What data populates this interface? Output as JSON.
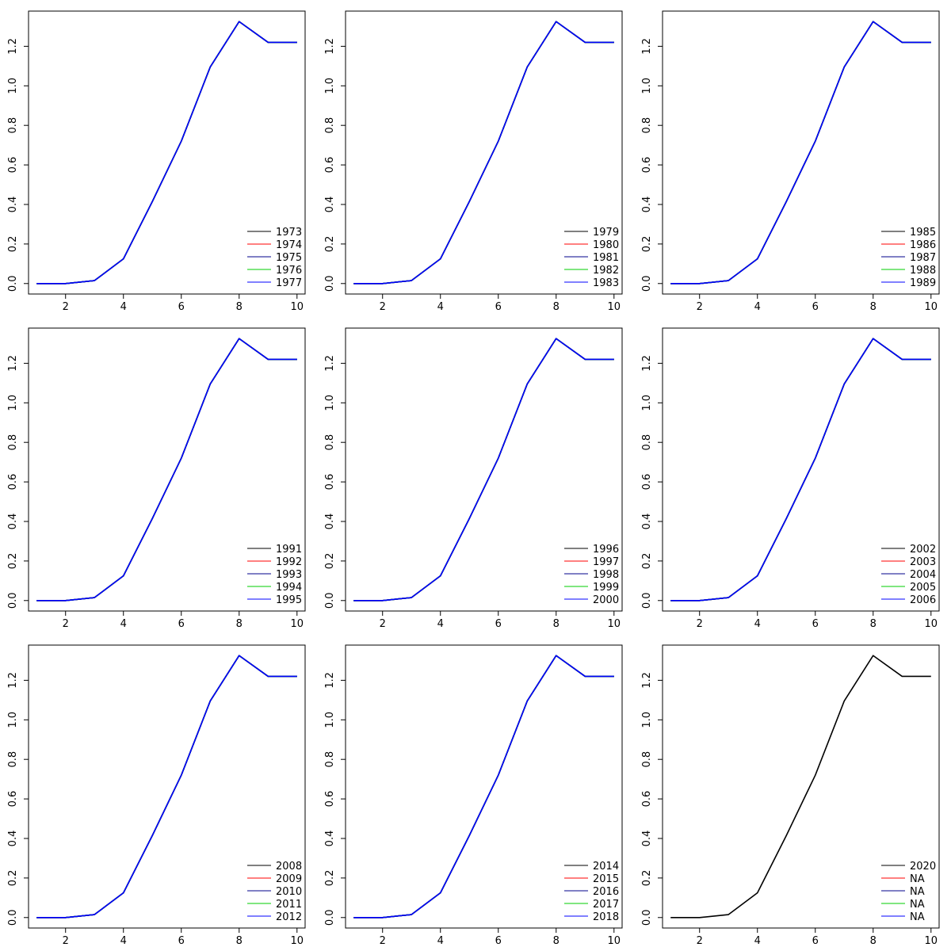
{
  "chart_data": {
    "layout": "3x3 grid of line charts",
    "panels": [
      {
        "type": "line",
        "x": [
          1,
          2,
          3,
          4,
          5,
          6,
          7,
          8,
          9,
          10
        ],
        "series": [
          {
            "name": "1973",
            "color": "#000000",
            "values": [
              0,
              0,
              0.015,
              0.125,
              0.415,
              0.72,
              1.095,
              1.325,
              1.22,
              1.22
            ]
          },
          {
            "name": "1974",
            "color": "#ff0000",
            "values": [
              0,
              0,
              0.015,
              0.125,
              0.415,
              0.72,
              1.095,
              1.325,
              1.22,
              1.22
            ]
          },
          {
            "name": "1975",
            "color": "#00008b",
            "values": [
              0,
              0,
              0.015,
              0.125,
              0.415,
              0.72,
              1.095,
              1.325,
              1.22,
              1.22
            ]
          },
          {
            "name": "1976",
            "color": "#00cd00",
            "values": [
              0,
              0,
              0.015,
              0.125,
              0.415,
              0.72,
              1.095,
              1.325,
              1.22,
              1.22
            ]
          },
          {
            "name": "1977",
            "color": "#0000ff",
            "values": [
              0,
              0,
              0.015,
              0.125,
              0.415,
              0.72,
              1.095,
              1.325,
              1.22,
              1.22
            ]
          }
        ],
        "xticks": [
          2,
          4,
          6,
          8,
          10
        ],
        "yticks": [
          0.0,
          0.2,
          0.4,
          0.6,
          0.8,
          1.0,
          1.2
        ],
        "xlim": [
          0.72,
          10.28
        ],
        "ylim": [
          -0.053,
          1.378
        ],
        "grid": false,
        "legend": "bottom-right"
      },
      {
        "type": "line",
        "x": [
          1,
          2,
          3,
          4,
          5,
          6,
          7,
          8,
          9,
          10
        ],
        "series": [
          {
            "name": "1979",
            "color": "#000000",
            "values": [
              0,
              0,
              0.015,
              0.125,
              0.415,
              0.72,
              1.095,
              1.325,
              1.22,
              1.22
            ]
          },
          {
            "name": "1980",
            "color": "#ff0000",
            "values": [
              0,
              0,
              0.015,
              0.125,
              0.415,
              0.72,
              1.095,
              1.325,
              1.22,
              1.22
            ]
          },
          {
            "name": "1981",
            "color": "#00008b",
            "values": [
              0,
              0,
              0.015,
              0.125,
              0.415,
              0.72,
              1.095,
              1.325,
              1.22,
              1.22
            ]
          },
          {
            "name": "1982",
            "color": "#00cd00",
            "values": [
              0,
              0,
              0.015,
              0.125,
              0.415,
              0.72,
              1.095,
              1.325,
              1.22,
              1.22
            ]
          },
          {
            "name": "1983",
            "color": "#0000ff",
            "values": [
              0,
              0,
              0.015,
              0.125,
              0.415,
              0.72,
              1.095,
              1.325,
              1.22,
              1.22
            ]
          }
        ],
        "xticks": [
          2,
          4,
          6,
          8,
          10
        ],
        "yticks": [
          0.0,
          0.2,
          0.4,
          0.6,
          0.8,
          1.0,
          1.2
        ],
        "xlim": [
          0.72,
          10.28
        ],
        "ylim": [
          -0.053,
          1.378
        ],
        "grid": false,
        "legend": "bottom-right"
      },
      {
        "type": "line",
        "x": [
          1,
          2,
          3,
          4,
          5,
          6,
          7,
          8,
          9,
          10
        ],
        "series": [
          {
            "name": "1985",
            "color": "#000000",
            "values": [
              0,
              0,
              0.015,
              0.125,
              0.415,
              0.72,
              1.095,
              1.325,
              1.22,
              1.22
            ]
          },
          {
            "name": "1986",
            "color": "#ff0000",
            "values": [
              0,
              0,
              0.015,
              0.125,
              0.415,
              0.72,
              1.095,
              1.325,
              1.22,
              1.22
            ]
          },
          {
            "name": "1987",
            "color": "#00008b",
            "values": [
              0,
              0,
              0.015,
              0.125,
              0.415,
              0.72,
              1.095,
              1.325,
              1.22,
              1.22
            ]
          },
          {
            "name": "1988",
            "color": "#00cd00",
            "values": [
              0,
              0,
              0.015,
              0.125,
              0.415,
              0.72,
              1.095,
              1.325,
              1.22,
              1.22
            ]
          },
          {
            "name": "1989",
            "color": "#0000ff",
            "values": [
              0,
              0,
              0.015,
              0.125,
              0.415,
              0.72,
              1.095,
              1.325,
              1.22,
              1.22
            ]
          }
        ],
        "xticks": [
          2,
          4,
          6,
          8,
          10
        ],
        "yticks": [
          0.0,
          0.2,
          0.4,
          0.6,
          0.8,
          1.0,
          1.2
        ],
        "xlim": [
          0.72,
          10.28
        ],
        "ylim": [
          -0.053,
          1.378
        ],
        "grid": false,
        "legend": "bottom-right"
      },
      {
        "type": "line",
        "x": [
          1,
          2,
          3,
          4,
          5,
          6,
          7,
          8,
          9,
          10
        ],
        "series": [
          {
            "name": "1991",
            "color": "#000000",
            "values": [
              0,
              0,
              0.015,
              0.125,
              0.415,
              0.72,
              1.095,
              1.325,
              1.22,
              1.22
            ]
          },
          {
            "name": "1992",
            "color": "#ff0000",
            "values": [
              0,
              0,
              0.015,
              0.125,
              0.415,
              0.72,
              1.095,
              1.325,
              1.22,
              1.22
            ]
          },
          {
            "name": "1993",
            "color": "#00008b",
            "values": [
              0,
              0,
              0.015,
              0.125,
              0.415,
              0.72,
              1.095,
              1.325,
              1.22,
              1.22
            ]
          },
          {
            "name": "1994",
            "color": "#00cd00",
            "values": [
              0,
              0,
              0.015,
              0.125,
              0.415,
              0.72,
              1.095,
              1.325,
              1.22,
              1.22
            ]
          },
          {
            "name": "1995",
            "color": "#0000ff",
            "values": [
              0,
              0,
              0.015,
              0.125,
              0.415,
              0.72,
              1.095,
              1.325,
              1.22,
              1.22
            ]
          }
        ],
        "xticks": [
          2,
          4,
          6,
          8,
          10
        ],
        "yticks": [
          0.0,
          0.2,
          0.4,
          0.6,
          0.8,
          1.0,
          1.2
        ],
        "xlim": [
          0.72,
          10.28
        ],
        "ylim": [
          -0.053,
          1.378
        ],
        "grid": false,
        "legend": "bottom-right"
      },
      {
        "type": "line",
        "x": [
          1,
          2,
          3,
          4,
          5,
          6,
          7,
          8,
          9,
          10
        ],
        "series": [
          {
            "name": "1996",
            "color": "#000000",
            "values": [
              0,
              0,
              0.015,
              0.125,
              0.415,
              0.72,
              1.095,
              1.325,
              1.22,
              1.22
            ]
          },
          {
            "name": "1997",
            "color": "#ff0000",
            "values": [
              0,
              0,
              0.015,
              0.125,
              0.415,
              0.72,
              1.095,
              1.325,
              1.22,
              1.22
            ]
          },
          {
            "name": "1998",
            "color": "#00008b",
            "values": [
              0,
              0,
              0.015,
              0.125,
              0.415,
              0.72,
              1.095,
              1.325,
              1.22,
              1.22
            ]
          },
          {
            "name": "1999",
            "color": "#00cd00",
            "values": [
              0,
              0,
              0.015,
              0.125,
              0.415,
              0.72,
              1.095,
              1.325,
              1.22,
              1.22
            ]
          },
          {
            "name": "2000",
            "color": "#0000ff",
            "values": [
              0,
              0,
              0.015,
              0.125,
              0.415,
              0.72,
              1.095,
              1.325,
              1.22,
              1.22
            ]
          }
        ],
        "xticks": [
          2,
          4,
          6,
          8,
          10
        ],
        "yticks": [
          0.0,
          0.2,
          0.4,
          0.6,
          0.8,
          1.0,
          1.2
        ],
        "xlim": [
          0.72,
          10.28
        ],
        "ylim": [
          -0.053,
          1.378
        ],
        "grid": false,
        "legend": "bottom-right"
      },
      {
        "type": "line",
        "x": [
          1,
          2,
          3,
          4,
          5,
          6,
          7,
          8,
          9,
          10
        ],
        "series": [
          {
            "name": "2002",
            "color": "#000000",
            "values": [
              0,
              0,
              0.015,
              0.125,
              0.415,
              0.72,
              1.095,
              1.325,
              1.22,
              1.22
            ]
          },
          {
            "name": "2003",
            "color": "#ff0000",
            "values": [
              0,
              0,
              0.015,
              0.125,
              0.415,
              0.72,
              1.095,
              1.325,
              1.22,
              1.22
            ]
          },
          {
            "name": "2004",
            "color": "#00008b",
            "values": [
              0,
              0,
              0.015,
              0.125,
              0.415,
              0.72,
              1.095,
              1.325,
              1.22,
              1.22
            ]
          },
          {
            "name": "2005",
            "color": "#00cd00",
            "values": [
              0,
              0,
              0.015,
              0.125,
              0.415,
              0.72,
              1.095,
              1.325,
              1.22,
              1.22
            ]
          },
          {
            "name": "2006",
            "color": "#0000ff",
            "values": [
              0,
              0,
              0.015,
              0.125,
              0.415,
              0.72,
              1.095,
              1.325,
              1.22,
              1.22
            ]
          }
        ],
        "xticks": [
          2,
          4,
          6,
          8,
          10
        ],
        "yticks": [
          0.0,
          0.2,
          0.4,
          0.6,
          0.8,
          1.0,
          1.2
        ],
        "xlim": [
          0.72,
          10.28
        ],
        "ylim": [
          -0.053,
          1.378
        ],
        "grid": false,
        "legend": "bottom-right"
      },
      {
        "type": "line",
        "x": [
          1,
          2,
          3,
          4,
          5,
          6,
          7,
          8,
          9,
          10
        ],
        "series": [
          {
            "name": "2008",
            "color": "#000000",
            "values": [
              0,
              0,
              0.015,
              0.125,
              0.415,
              0.72,
              1.095,
              1.325,
              1.22,
              1.22
            ]
          },
          {
            "name": "2009",
            "color": "#ff0000",
            "values": [
              0,
              0,
              0.015,
              0.125,
              0.415,
              0.72,
              1.095,
              1.325,
              1.22,
              1.22
            ]
          },
          {
            "name": "2010",
            "color": "#00008b",
            "values": [
              0,
              0,
              0.015,
              0.125,
              0.415,
              0.72,
              1.095,
              1.325,
              1.22,
              1.22
            ]
          },
          {
            "name": "2011",
            "color": "#00cd00",
            "values": [
              0,
              0,
              0.015,
              0.125,
              0.415,
              0.72,
              1.095,
              1.325,
              1.22,
              1.22
            ]
          },
          {
            "name": "2012",
            "color": "#0000ff",
            "values": [
              0,
              0,
              0.015,
              0.125,
              0.415,
              0.72,
              1.095,
              1.325,
              1.22,
              1.22
            ]
          }
        ],
        "xticks": [
          2,
          4,
          6,
          8,
          10
        ],
        "yticks": [
          0.0,
          0.2,
          0.4,
          0.6,
          0.8,
          1.0,
          1.2
        ],
        "xlim": [
          0.72,
          10.28
        ],
        "ylim": [
          -0.053,
          1.378
        ],
        "grid": false,
        "legend": "bottom-right"
      },
      {
        "type": "line",
        "x": [
          1,
          2,
          3,
          4,
          5,
          6,
          7,
          8,
          9,
          10
        ],
        "series": [
          {
            "name": "2014",
            "color": "#000000",
            "values": [
              0,
              0,
              0.015,
              0.125,
              0.415,
              0.72,
              1.095,
              1.325,
              1.22,
              1.22
            ]
          },
          {
            "name": "2015",
            "color": "#ff0000",
            "values": [
              0,
              0,
              0.015,
              0.125,
              0.415,
              0.72,
              1.095,
              1.325,
              1.22,
              1.22
            ]
          },
          {
            "name": "2016",
            "color": "#00008b",
            "values": [
              0,
              0,
              0.015,
              0.125,
              0.415,
              0.72,
              1.095,
              1.325,
              1.22,
              1.22
            ]
          },
          {
            "name": "2017",
            "color": "#00cd00",
            "values": [
              0,
              0,
              0.015,
              0.125,
              0.415,
              0.72,
              1.095,
              1.325,
              1.22,
              1.22
            ]
          },
          {
            "name": "2018",
            "color": "#0000ff",
            "values": [
              0,
              0,
              0.015,
              0.125,
              0.415,
              0.72,
              1.095,
              1.325,
              1.22,
              1.22
            ]
          }
        ],
        "xticks": [
          2,
          4,
          6,
          8,
          10
        ],
        "yticks": [
          0.0,
          0.2,
          0.4,
          0.6,
          0.8,
          1.0,
          1.2
        ],
        "xlim": [
          0.72,
          10.28
        ],
        "ylim": [
          -0.053,
          1.378
        ],
        "grid": false,
        "legend": "bottom-right"
      },
      {
        "type": "line",
        "x": [
          1,
          2,
          3,
          4,
          5,
          6,
          7,
          8,
          9,
          10
        ],
        "series": [
          {
            "name": "2020",
            "color": "#000000",
            "values": [
              0,
              0,
              0.015,
              0.125,
              0.415,
              0.72,
              1.095,
              1.325,
              1.22,
              1.22
            ]
          },
          {
            "name": "NA",
            "color": "#ff0000",
            "values": []
          },
          {
            "name": "NA",
            "color": "#00008b",
            "values": []
          },
          {
            "name": "NA",
            "color": "#00cd00",
            "values": []
          },
          {
            "name": "NA",
            "color": "#0000ff",
            "values": []
          }
        ],
        "xticks": [
          2,
          4,
          6,
          8,
          10
        ],
        "yticks": [
          0.0,
          0.2,
          0.4,
          0.6,
          0.8,
          1.0,
          1.2
        ],
        "xlim": [
          0.72,
          10.28
        ],
        "ylim": [
          -0.053,
          1.378
        ],
        "grid": false,
        "legend": "bottom-right"
      }
    ]
  }
}
